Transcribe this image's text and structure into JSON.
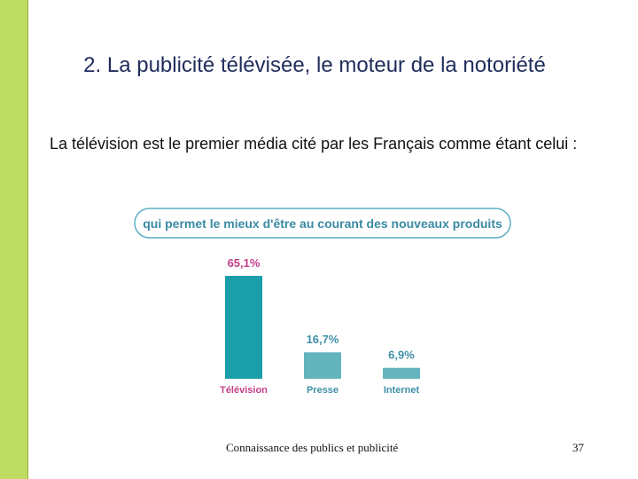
{
  "slide": {
    "title": "2. La publicité télévisée, le moteur de la notoriété",
    "subtitle": "La télévision est le premier média cité par les Français comme étant celui :",
    "footer": "Connaissance des publics et publicité",
    "page_number": "37"
  },
  "colors": {
    "accent_bar": "#bfdc62",
    "pill_border": "#5aaec4",
    "highlight_label": "#c53f8a",
    "muted_label": "#3f8fa6",
    "bar_primary": "#1a9eaa",
    "bar_secondary": "#63b4bc"
  },
  "chart_data": {
    "type": "bar",
    "title": "qui permet le mieux d'être au courant des nouveaux produits",
    "categories": [
      "Télévision",
      "Presse",
      "Internet"
    ],
    "values": [
      65.1,
      16.7,
      6.9
    ],
    "value_labels": [
      "65,1%",
      "16,7%",
      "6,9%"
    ],
    "unit": "%",
    "ylim": [
      0,
      65.1
    ],
    "grid": false,
    "legend": "none"
  }
}
